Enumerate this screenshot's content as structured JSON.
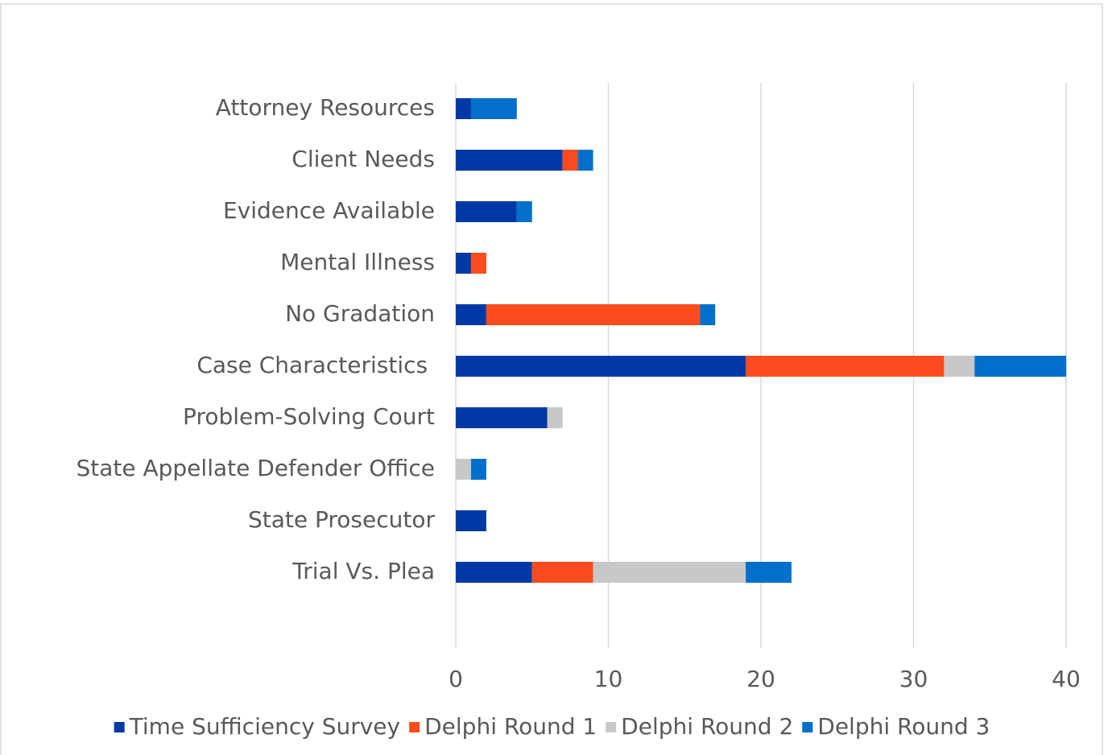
{
  "chart_data": {
    "type": "stacked_bar_horizontal",
    "categories": [
      "Attorney Resources",
      "Client Needs",
      "Evidence Available",
      "Mental Illness",
      "No Gradation",
      "Case Characteristics ",
      "Problem-Solving Court",
      "State Appellate Defender Office",
      "State Prosecutor",
      "Trial Vs. Plea"
    ],
    "series": [
      {
        "name": "Time Sufficiency Survey",
        "color": "#0039a6",
        "values": [
          1,
          7,
          4,
          1,
          2,
          19,
          6,
          0,
          2,
          5
        ]
      },
      {
        "name": "Delphi Round 1",
        "color": "#fc4c1e",
        "values": [
          0,
          1,
          0,
          1,
          14,
          13,
          0,
          0,
          0,
          4
        ]
      },
      {
        "name": "Delphi Round 2",
        "color": "#c8c8c8",
        "values": [
          0,
          0,
          0,
          0,
          0,
          2,
          1,
          1,
          0,
          10
        ]
      },
      {
        "name": "Delphi Round 3",
        "color": "#0070cc",
        "values": [
          3,
          1,
          1,
          0,
          1,
          6,
          0,
          1,
          0,
          3
        ]
      }
    ],
    "xlim": [
      0,
      40
    ],
    "xticks": [
      0,
      10,
      20,
      30,
      40
    ],
    "grid": true,
    "legend": "bottom"
  }
}
